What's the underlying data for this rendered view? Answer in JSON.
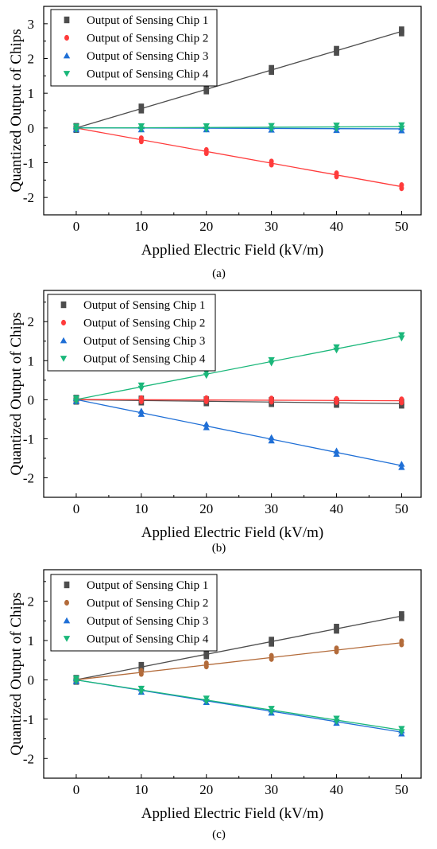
{
  "chart_data": [
    {
      "type": "scatter",
      "panel_label": "(a)",
      "xlabel": "Applied Electric Field (kV/m)",
      "ylabel": "Quantized Output of Chips",
      "xlim": [
        -5,
        53
      ],
      "ylim": [
        -2.5,
        3.5
      ],
      "xticks": [
        0,
        10,
        20,
        30,
        40,
        50
      ],
      "yticks": [
        -2,
        -1,
        0,
        1,
        2,
        3
      ],
      "legend_position": "top-left",
      "x": [
        0,
        10,
        20,
        30,
        40,
        50
      ],
      "series": [
        {
          "name": "Output of Sensing Chip 1",
          "color": "#4d4d4d",
          "marker": "square",
          "values": [
            0,
            0.56,
            1.11,
            1.67,
            2.22,
            2.78
          ]
        },
        {
          "name": "Output of Sensing Chip 2",
          "color": "#ff3b3b",
          "marker": "circle",
          "values": [
            0,
            -0.34,
            -0.68,
            -1.01,
            -1.35,
            -1.69
          ]
        },
        {
          "name": "Output of Sensing Chip 3",
          "color": "#1f6fd6",
          "marker": "triangle-up",
          "values": [
            0,
            0,
            0,
            -0.01,
            -0.02,
            -0.03
          ]
        },
        {
          "name": "Output of Sensing Chip 4",
          "color": "#1ab77a",
          "marker": "triangle-down",
          "values": [
            0,
            0.01,
            0.01,
            0.02,
            0.03,
            0.04
          ]
        }
      ]
    },
    {
      "type": "scatter",
      "panel_label": "(b)",
      "xlabel": "Applied Electric Field (kV/m)",
      "ylabel": "Quantized Output of Chips",
      "xlim": [
        -5,
        53
      ],
      "ylim": [
        -2.5,
        2.8
      ],
      "xticks": [
        0,
        10,
        20,
        30,
        40,
        50
      ],
      "yticks": [
        -2,
        -1,
        0,
        1,
        2
      ],
      "legend_position": "top-left",
      "x": [
        0,
        10,
        20,
        30,
        40,
        50
      ],
      "series": [
        {
          "name": "Output of Sensing Chip 1",
          "color": "#4d4d4d",
          "marker": "square",
          "values": [
            0,
            -0.02,
            -0.04,
            -0.06,
            -0.08,
            -0.1
          ]
        },
        {
          "name": "Output of Sensing Chip 2",
          "color": "#ff3b3b",
          "marker": "circle",
          "values": [
            0,
            0,
            0,
            -0.01,
            -0.02,
            -0.03
          ]
        },
        {
          "name": "Output of Sensing Chip 3",
          "color": "#1f6fd6",
          "marker": "triangle-up",
          "values": [
            0,
            -0.33,
            -0.67,
            -1.01,
            -1.35,
            -1.69
          ]
        },
        {
          "name": "Output of Sensing Chip 4",
          "color": "#1ab77a",
          "marker": "triangle-down",
          "values": [
            0,
            0.33,
            0.66,
            0.98,
            1.31,
            1.62
          ]
        }
      ]
    },
    {
      "type": "scatter",
      "panel_label": "(c)",
      "xlabel": "Applied Electric Field (kV/m)",
      "ylabel": "Quantized Output of Chips",
      "xlim": [
        -5,
        53
      ],
      "ylim": [
        -2.5,
        2.8
      ],
      "xticks": [
        0,
        10,
        20,
        30,
        40,
        50
      ],
      "yticks": [
        -2,
        -1,
        0,
        1,
        2
      ],
      "legend_position": "top-left",
      "x": [
        0,
        10,
        20,
        30,
        40,
        50
      ],
      "series": [
        {
          "name": "Output of Sensing Chip 1",
          "color": "#4d4d4d",
          "marker": "square",
          "values": [
            0,
            0.33,
            0.65,
            0.97,
            1.3,
            1.62
          ]
        },
        {
          "name": "Output of Sensing Chip 2",
          "color": "#b36b3a",
          "marker": "circle",
          "values": [
            0,
            0.19,
            0.38,
            0.57,
            0.76,
            0.94
          ]
        },
        {
          "name": "Output of Sensing Chip 3",
          "color": "#1f6fd6",
          "marker": "triangle-up",
          "values": [
            0,
            -0.27,
            -0.53,
            -0.8,
            -1.06,
            -1.33
          ]
        },
        {
          "name": "Output of Sensing Chip 4",
          "color": "#1ab77a",
          "marker": "triangle-down",
          "values": [
            0,
            -0.26,
            -0.51,
            -0.77,
            -1.02,
            -1.28
          ]
        }
      ]
    }
  ]
}
